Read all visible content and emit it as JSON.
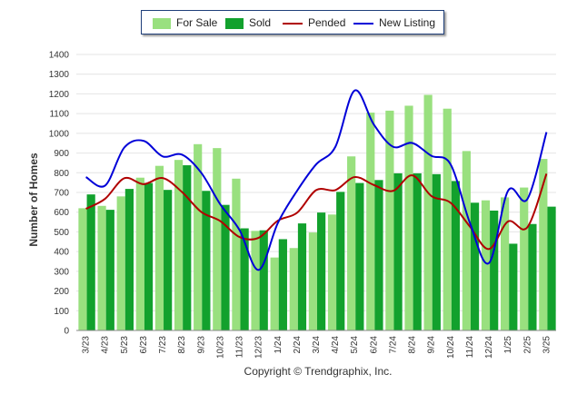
{
  "chart_data": {
    "type": "bar",
    "title": "",
    "xlabel": "",
    "ylabel": "Number of Homes",
    "ylim": [
      0,
      1400
    ],
    "yticks": [
      0,
      100,
      200,
      300,
      400,
      500,
      600,
      700,
      800,
      900,
      1000,
      1100,
      1200,
      1300,
      1400
    ],
    "grid": true,
    "legend_position": "top",
    "categories": [
      "3/23",
      "4/23",
      "5/23",
      "6/23",
      "7/23",
      "8/23",
      "9/23",
      "10/23",
      "11/23",
      "12/23",
      "1/24",
      "2/24",
      "3/24",
      "4/24",
      "5/24",
      "6/24",
      "7/24",
      "8/24",
      "9/24",
      "10/24",
      "11/24",
      "12/24",
      "1/25",
      "2/25",
      "3/25"
    ],
    "series": [
      {
        "name": "For Sale",
        "kind": "bar",
        "color": "#99e07f",
        "values": [
          620,
          632,
          680,
          775,
          835,
          865,
          945,
          925,
          770,
          505,
          370,
          418,
          497,
          588,
          883,
          1105,
          1115,
          1140,
          1195,
          1125,
          910,
          660,
          675,
          725,
          870
        ]
      },
      {
        "name": "Sold",
        "kind": "bar",
        "color": "#12a12d",
        "values": [
          690,
          612,
          718,
          748,
          713,
          838,
          708,
          637,
          518,
          508,
          463,
          543,
          598,
          703,
          748,
          763,
          797,
          797,
          793,
          758,
          648,
          608,
          440,
          540,
          628
        ]
      },
      {
        "name": "Pended",
        "kind": "line",
        "color": "#b00000",
        "values": [
          617,
          668,
          772,
          742,
          773,
          703,
          602,
          555,
          474,
          470,
          557,
          597,
          712,
          712,
          778,
          738,
          708,
          787,
          682,
          648,
          528,
          413,
          553,
          523,
          795
        ]
      },
      {
        "name": "New Listing",
        "kind": "line",
        "color": "#0000d8",
        "values": [
          778,
          735,
          928,
          962,
          883,
          892,
          801,
          640,
          510,
          307,
          545,
          708,
          843,
          932,
          1217,
          1045,
          932,
          951,
          886,
          843,
          548,
          342,
          709,
          666,
          1006
        ]
      }
    ]
  },
  "footer": {
    "copyright": "Copyright © Trendgraphix, Inc."
  }
}
